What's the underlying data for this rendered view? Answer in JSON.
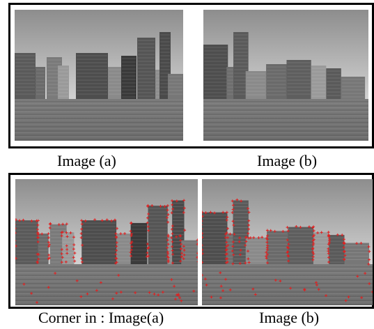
{
  "captions": {
    "top_left": "Image (a)",
    "top_right": "Image (b)",
    "bottom_left": "Corner in : Image(a)",
    "bottom_right": "Image (b)"
  },
  "photos": {
    "top_left": "city skyline photo (grayscale), image a",
    "top_right": "city skyline photo (grayscale), image b",
    "bottom_left": "skyline photo a with detected corners",
    "bottom_right": "skyline photo b with detected corners"
  },
  "colors": {
    "corner_marker": "#e02020",
    "sky_top": "#8d8d8d",
    "sky_bottom": "#d2d2d2",
    "water": "#6e6e6e"
  }
}
